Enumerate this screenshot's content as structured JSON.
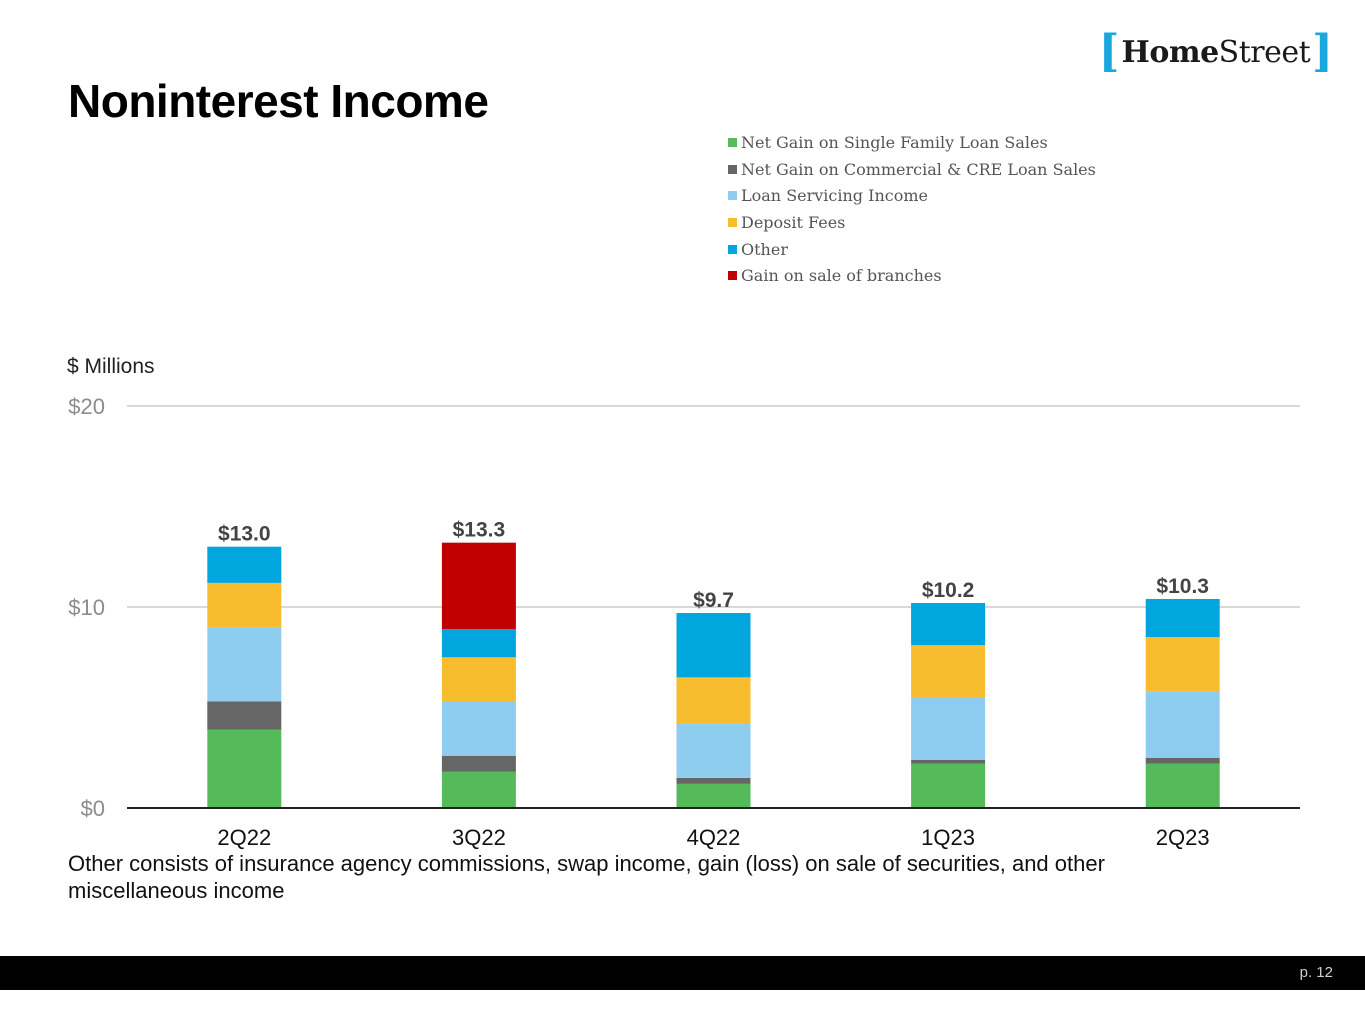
{
  "title": "Noninterest Income",
  "logo": {
    "bracket_left": "[",
    "part1": "Home",
    "part2": "Street",
    "bracket_right": "]"
  },
  "units": "$ Millions",
  "note": "Other consists of insurance agency commissions, swap income, gain (loss) on sale of securities, and other miscellaneous income",
  "page_label": "p. 12",
  "chart_data": {
    "type": "bar",
    "stacked": true,
    "categories": [
      "2Q22",
      "3Q22",
      "4Q22",
      "1Q23",
      "2Q23"
    ],
    "series": [
      {
        "name": "Net Gain on Single Family Loan Sales",
        "color": "#55bb5a",
        "values": [
          3.9,
          1.8,
          1.2,
          2.2,
          2.2
        ]
      },
      {
        "name": "Net Gain on Commercial & CRE Loan Sales",
        "color": "#666666",
        "values": [
          1.4,
          0.8,
          0.3,
          0.2,
          0.3
        ]
      },
      {
        "name": "Loan Servicing Income",
        "color": "#8ecdf0",
        "values": [
          3.7,
          2.7,
          2.7,
          3.1,
          3.3
        ]
      },
      {
        "name": "Deposit Fees",
        "color": "#f8bd2e",
        "values": [
          2.2,
          2.2,
          2.3,
          2.6,
          2.7
        ]
      },
      {
        "name": "Other",
        "color": "#00a6dd",
        "values": [
          1.8,
          1.4,
          3.2,
          2.1,
          1.9
        ]
      },
      {
        "name": "Gain on sale of branches",
        "color": "#c00000",
        "values": [
          0,
          4.3,
          0,
          0,
          0
        ]
      }
    ],
    "totals": [
      "$13.0",
      "$13.3",
      "$9.7",
      "$10.2",
      "$10.3"
    ],
    "y_ticks": [
      {
        "value": 0,
        "label": "$0"
      },
      {
        "value": 10,
        "label": "$10"
      },
      {
        "value": 20,
        "label": "$20"
      }
    ],
    "ylim": [
      0,
      20
    ],
    "grid": true,
    "legend_position": "top-right"
  }
}
